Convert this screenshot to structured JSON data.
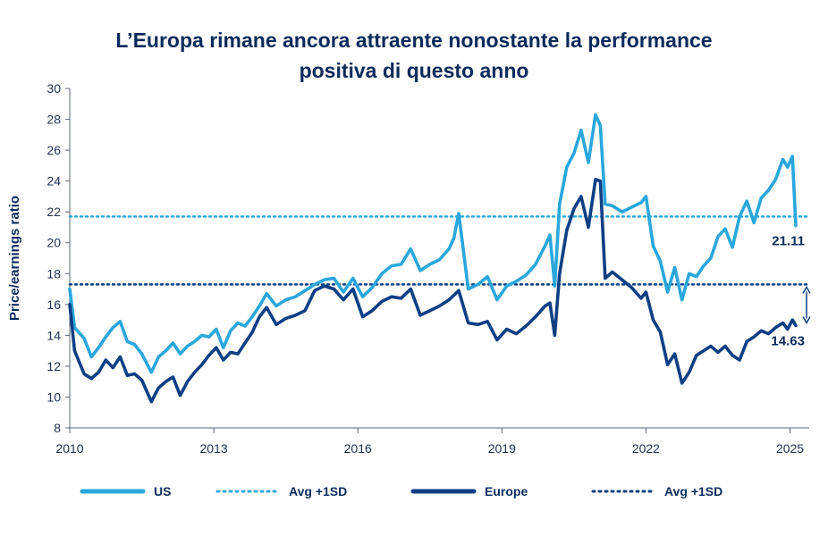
{
  "chart_data": {
    "type": "line",
    "title_lines": [
      "L’Europa rimane ancora attraente nonostante la performance",
      "positiva di questo anno"
    ],
    "ylabel": "Price/earnings ratio",
    "xlabel": "",
    "ylim": [
      8,
      30
    ],
    "xlim": [
      2010,
      2025.4
    ],
    "yticks": [
      8,
      10,
      12,
      14,
      16,
      18,
      20,
      22,
      24,
      26,
      28,
      30
    ],
    "xticks": [
      2010,
      2013,
      2016,
      2019,
      2022,
      2025
    ],
    "ytick_labels": [
      "8",
      "10",
      "12",
      "14",
      "16",
      "18",
      "20",
      "22",
      "24",
      "26",
      "28",
      "30"
    ],
    "xtick_labels": [
      "2010",
      "2013",
      "2016",
      "2019",
      "2022",
      "2025"
    ],
    "colors": {
      "us": "#2aa7dc",
      "europe": "#0d3f84",
      "spread_arrow": "#0d3f84"
    },
    "series": [
      {
        "name": "US",
        "x": [
          2010,
          2010.1,
          2010.3,
          2010.45,
          2010.6,
          2010.75,
          2010.9,
          2011.05,
          2011.2,
          2011.35,
          2011.5,
          2011.7,
          2011.85,
          2012.0,
          2012.15,
          2012.3,
          2012.45,
          2012.6,
          2012.75,
          2012.9,
          2013.05,
          2013.2,
          2013.35,
          2013.5,
          2013.65,
          2013.8,
          2013.95,
          2014.1,
          2014.3,
          2014.5,
          2014.7,
          2014.9,
          2015.1,
          2015.3,
          2015.5,
          2015.7,
          2015.9,
          2016.1,
          2016.3,
          2016.5,
          2016.7,
          2016.9,
          2017.1,
          2017.3,
          2017.5,
          2017.7,
          2017.9,
          2018.0,
          2018.1,
          2018.3,
          2018.5,
          2018.7,
          2018.9,
          2019.1,
          2019.3,
          2019.5,
          2019.7,
          2019.9,
          2020.0,
          2020.1,
          2020.2,
          2020.35,
          2020.5,
          2020.65,
          2020.8,
          2020.95,
          2021.05,
          2021.15,
          2021.3,
          2021.5,
          2021.7,
          2021.9,
          2022.0,
          2022.15,
          2022.3,
          2022.45,
          2022.6,
          2022.75,
          2022.9,
          2023.05,
          2023.2,
          2023.35,
          2023.5,
          2023.65,
          2023.8,
          2023.95,
          2024.1,
          2024.25,
          2024.4,
          2024.55,
          2024.7,
          2024.85,
          2024.95,
          2025.05,
          2025.12
        ],
        "values": [
          17.0,
          14.5,
          13.8,
          12.6,
          13.2,
          13.9,
          14.5,
          14.9,
          13.6,
          13.4,
          12.8,
          11.6,
          12.6,
          13.0,
          13.5,
          12.8,
          13.3,
          13.6,
          14.0,
          13.9,
          14.4,
          13.2,
          14.3,
          14.8,
          14.6,
          15.2,
          15.9,
          16.7,
          15.9,
          16.3,
          16.5,
          16.9,
          17.3,
          17.6,
          17.7,
          16.8,
          17.7,
          16.5,
          17.1,
          18.0,
          18.5,
          18.6,
          19.6,
          18.2,
          18.6,
          18.9,
          19.6,
          20.3,
          21.9,
          17.0,
          17.3,
          17.8,
          16.3,
          17.2,
          17.5,
          17.9,
          18.6,
          19.8,
          20.5,
          17.2,
          22.5,
          24.9,
          25.8,
          27.3,
          25.2,
          28.3,
          27.6,
          22.5,
          22.4,
          22.0,
          22.3,
          22.6,
          23.0,
          19.8,
          18.8,
          16.8,
          18.4,
          16.3,
          18.0,
          17.8,
          18.5,
          19.0,
          20.4,
          20.9,
          19.7,
          21.7,
          22.7,
          21.3,
          22.9,
          23.4,
          24.1,
          25.4,
          24.9,
          25.6,
          21.11
        ]
      },
      {
        "name": "Europe",
        "x": [
          2010,
          2010.1,
          2010.3,
          2010.45,
          2010.6,
          2010.75,
          2010.9,
          2011.05,
          2011.2,
          2011.35,
          2011.5,
          2011.7,
          2011.85,
          2012.0,
          2012.15,
          2012.3,
          2012.45,
          2012.6,
          2012.75,
          2012.9,
          2013.05,
          2013.2,
          2013.35,
          2013.5,
          2013.65,
          2013.8,
          2013.95,
          2014.1,
          2014.3,
          2014.5,
          2014.7,
          2014.9,
          2015.1,
          2015.3,
          2015.5,
          2015.7,
          2015.9,
          2016.1,
          2016.3,
          2016.5,
          2016.7,
          2016.9,
          2017.1,
          2017.3,
          2017.5,
          2017.7,
          2017.9,
          2018.0,
          2018.1,
          2018.3,
          2018.5,
          2018.7,
          2018.9,
          2019.1,
          2019.3,
          2019.5,
          2019.7,
          2019.9,
          2020.0,
          2020.1,
          2020.2,
          2020.35,
          2020.5,
          2020.65,
          2020.8,
          2020.95,
          2021.05,
          2021.15,
          2021.3,
          2021.5,
          2021.7,
          2021.9,
          2022.0,
          2022.15,
          2022.3,
          2022.45,
          2022.6,
          2022.75,
          2022.9,
          2023.05,
          2023.2,
          2023.35,
          2023.5,
          2023.65,
          2023.8,
          2023.95,
          2024.1,
          2024.25,
          2024.4,
          2024.55,
          2024.7,
          2024.85,
          2024.95,
          2025.05,
          2025.12
        ],
        "values": [
          16.0,
          13.0,
          11.5,
          11.2,
          11.6,
          12.4,
          11.9,
          12.6,
          11.4,
          11.5,
          11.1,
          9.7,
          10.6,
          11.0,
          11.3,
          10.1,
          11.0,
          11.6,
          12.1,
          12.7,
          13.2,
          12.4,
          12.9,
          12.8,
          13.5,
          14.2,
          15.2,
          15.8,
          14.7,
          15.1,
          15.3,
          15.6,
          16.9,
          17.2,
          17.0,
          16.3,
          17.0,
          15.2,
          15.6,
          16.2,
          16.5,
          16.4,
          17.0,
          15.3,
          15.6,
          15.9,
          16.3,
          16.6,
          16.9,
          14.8,
          14.7,
          14.9,
          13.7,
          14.4,
          14.1,
          14.6,
          15.2,
          15.9,
          16.1,
          14.0,
          18.0,
          20.8,
          22.2,
          23.0,
          21.0,
          24.1,
          24.0,
          17.7,
          18.1,
          17.6,
          17.1,
          16.4,
          16.8,
          15.0,
          14.2,
          12.1,
          12.8,
          10.9,
          11.6,
          12.7,
          13.0,
          13.3,
          12.9,
          13.3,
          12.7,
          12.4,
          13.6,
          13.9,
          14.3,
          14.1,
          14.5,
          14.8,
          14.4,
          15.0,
          14.63
        ]
      },
      {
        "name": "US Avg +1SD",
        "style": "dotted",
        "value": 21.7
      },
      {
        "name": "Europe Avg +1SD",
        "style": "dotted",
        "value": 17.3
      }
    ],
    "data_labels": [
      {
        "series": "US",
        "text": "21.11"
      },
      {
        "series": "Europe",
        "text": "14.63"
      }
    ],
    "legend": [
      {
        "label": "US",
        "style": "solid",
        "color": "#2aa7dc"
      },
      {
        "label": "Avg +1SD",
        "style": "dotted",
        "color": "#2aa7dc"
      },
      {
        "label": "Europe",
        "style": "solid",
        "color": "#0d3f84"
      },
      {
        "label": "Avg +1SD",
        "style": "dotted",
        "color": "#0d3f84"
      }
    ],
    "legend_position": "bottom",
    "grid": false
  }
}
